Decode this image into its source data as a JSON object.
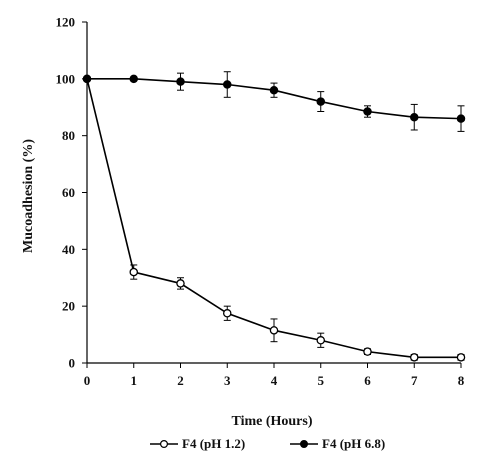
{
  "chart_data": {
    "type": "line",
    "title": "",
    "xlabel": "Time (Hours)",
    "ylabel": "Mucoadhesion (%)",
    "x": [
      0,
      1,
      2,
      3,
      4,
      5,
      6,
      7,
      8
    ],
    "xlim": [
      0,
      8
    ],
    "ylim": [
      0,
      120
    ],
    "xticks": [
      "0",
      "1",
      "2",
      "3",
      "4",
      "5",
      "6",
      "7",
      "8"
    ],
    "yticks": [
      "0",
      "20",
      "40",
      "60",
      "80",
      "100",
      "120"
    ],
    "grid": false,
    "legend_position": "bottom",
    "series": [
      {
        "name": "F4 (pH 1.2)",
        "marker": "open-circle",
        "values": [
          100,
          32,
          28,
          17.5,
          11.5,
          8,
          4,
          2,
          2
        ],
        "errors": [
          0,
          2.5,
          2,
          2.5,
          4,
          2.5,
          1,
          1,
          1
        ]
      },
      {
        "name": "F4 (pH 6.8)",
        "marker": "filled-circle",
        "values": [
          100,
          100,
          99,
          98,
          96,
          92,
          88.5,
          86.5,
          86
        ],
        "errors": [
          0,
          0,
          3,
          4.5,
          2.5,
          3.5,
          2,
          4.5,
          4.5
        ]
      }
    ],
    "colors": {
      "line": "#000000",
      "open_marker_fill": "#ffffff"
    }
  }
}
